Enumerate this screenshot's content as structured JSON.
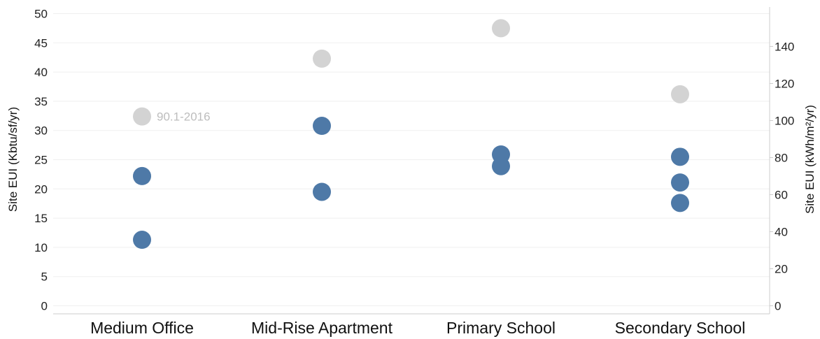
{
  "chart_data": {
    "type": "scatter",
    "categories": [
      "Medium Office",
      "Mid-Rise Apartment",
      "Primary School",
      "Secondary School"
    ],
    "ylabel": "Site EUI (Kbtu/sf/yr)",
    "ylabel_right": "Site EUI  (kWh/m²/yr)",
    "ylim": [
      0,
      50
    ],
    "y_ticks": [
      0,
      5,
      10,
      15,
      20,
      25,
      30,
      35,
      40,
      45,
      50
    ],
    "ylim_right": [
      0,
      157.7
    ],
    "y_ticks_right": [
      0,
      20,
      40,
      60,
      80,
      100,
      120,
      140
    ],
    "grid": true,
    "series": [
      {
        "name": "90.1-2016",
        "color": "#d3d3d3",
        "points": [
          {
            "category": "Medium Office",
            "y": 32.4
          },
          {
            "category": "Mid-Rise Apartment",
            "y": 42.3
          },
          {
            "category": "Primary School",
            "y": 47.5
          },
          {
            "category": "Secondary School",
            "y": 36.2
          }
        ]
      },
      {
        "name": "",
        "color": "#4e79a7",
        "points": [
          {
            "category": "Medium Office",
            "y": 22.2
          },
          {
            "category": "Medium Office",
            "y": 11.3
          },
          {
            "category": "Mid-Rise Apartment",
            "y": 30.8
          },
          {
            "category": "Mid-Rise Apartment",
            "y": 19.5
          },
          {
            "category": "Primary School",
            "y": 25.9
          },
          {
            "category": "Primary School",
            "y": 23.9
          },
          {
            "category": "Secondary School",
            "y": 25.5
          },
          {
            "category": "Secondary School",
            "y": 21.1
          },
          {
            "category": "Secondary School",
            "y": 17.6
          }
        ]
      }
    ],
    "annotations": [
      {
        "text": "90.1-2016",
        "category": "Medium Office",
        "y": 32.4
      }
    ]
  }
}
